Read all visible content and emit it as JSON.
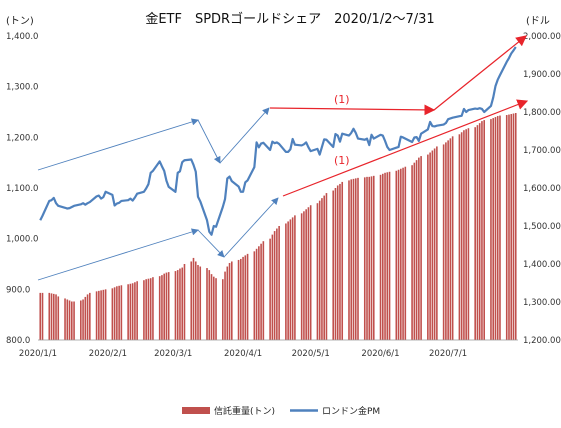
{
  "chart_data": {
    "type": "bar+line",
    "title": "金ETF　SPDRゴールドシェア　2020/1/2〜7/31",
    "left_axis": {
      "unit_label": "(トン)",
      "range": [
        800,
        1400
      ],
      "ticks": [
        "800.0",
        "900.0",
        "1,000.0",
        "1,100.0",
        "1,200.0",
        "1,300.0",
        "1,400.0"
      ],
      "tick_values": [
        800,
        900,
        1000,
        1100,
        1200,
        1300,
        1400
      ]
    },
    "right_axis": {
      "unit_label": "(ドル",
      "range": [
        1200,
        2000
      ],
      "ticks": [
        "1,200.00",
        "1,300.00",
        "1,400.00",
        "1,500.00",
        "1,600.00",
        "1,700.00",
        "1,800.00",
        "1,900.00",
        "2,000.00"
      ],
      "tick_values": [
        1200,
        1300,
        1400,
        1500,
        1600,
        1700,
        1800,
        1900,
        2000
      ]
    },
    "x_axis": {
      "ticks": [
        "2020/1/1",
        "2020/2/1",
        "2020/3/1",
        "2020/4/1",
        "2020/5/1",
        "2020/6/1",
        "2020/7/1"
      ],
      "tick_days": [
        0,
        31,
        60,
        91,
        121,
        152,
        182
      ],
      "domain_days": [
        0,
        213
      ]
    },
    "series": [
      {
        "name": "信託重量(トン)",
        "type": "bar",
        "axis": "left",
        "color": "#c0504d",
        "values": [
          [
            1,
            893
          ],
          [
            2,
            893
          ],
          [
            5,
            893
          ],
          [
            6,
            892
          ],
          [
            7,
            891
          ],
          [
            8,
            890
          ],
          [
            9,
            886
          ],
          [
            12,
            882
          ],
          [
            13,
            880
          ],
          [
            14,
            878
          ],
          [
            15,
            876
          ],
          [
            16,
            876
          ],
          [
            19,
            878
          ],
          [
            20,
            880
          ],
          [
            21,
            885
          ],
          [
            22,
            890
          ],
          [
            23,
            893
          ],
          [
            26,
            896
          ],
          [
            27,
            897
          ],
          [
            28,
            898
          ],
          [
            29,
            899
          ],
          [
            30,
            900
          ],
          [
            33,
            902
          ],
          [
            34,
            904
          ],
          [
            35,
            906
          ],
          [
            36,
            907
          ],
          [
            37,
            908
          ],
          [
            40,
            910
          ],
          [
            41,
            911
          ],
          [
            42,
            912
          ],
          [
            43,
            914
          ],
          [
            44,
            916
          ],
          [
            47,
            918
          ],
          [
            48,
            920
          ],
          [
            49,
            921
          ],
          [
            50,
            922
          ],
          [
            51,
            924
          ],
          [
            54,
            926
          ],
          [
            55,
            928
          ],
          [
            56,
            931
          ],
          [
            57,
            933
          ],
          [
            58,
            934
          ],
          [
            61,
            936
          ],
          [
            62,
            938
          ],
          [
            63,
            941
          ],
          [
            64,
            943
          ],
          [
            65,
            950
          ],
          [
            68,
            955
          ],
          [
            69,
            962
          ],
          [
            70,
            955
          ],
          [
            71,
            948
          ],
          [
            72,
            945
          ],
          [
            75,
            942
          ],
          [
            76,
            938
          ],
          [
            77,
            930
          ],
          [
            78,
            925
          ],
          [
            79,
            922
          ],
          [
            82,
            920
          ],
          [
            83,
            935
          ],
          [
            84,
            945
          ],
          [
            85,
            952
          ],
          [
            86,
            955
          ],
          [
            89,
            958
          ],
          [
            90,
            960
          ],
          [
            91,
            964
          ],
          [
            92,
            967
          ],
          [
            93,
            970
          ],
          [
            96,
            975
          ],
          [
            97,
            980
          ],
          [
            98,
            985
          ],
          [
            99,
            990
          ],
          [
            100,
            995
          ],
          [
            103,
            1000
          ],
          [
            104,
            1008
          ],
          [
            105,
            1015
          ],
          [
            106,
            1020
          ],
          [
            107,
            1025
          ],
          [
            110,
            1030
          ],
          [
            111,
            1034
          ],
          [
            112,
            1038
          ],
          [
            113,
            1042
          ],
          [
            114,
            1046
          ],
          [
            117,
            1050
          ],
          [
            118,
            1054
          ],
          [
            119,
            1058
          ],
          [
            120,
            1062
          ],
          [
            121,
            1066
          ],
          [
            124,
            1070
          ],
          [
            125,
            1075
          ],
          [
            126,
            1080
          ],
          [
            127,
            1085
          ],
          [
            128,
            1090
          ],
          [
            131,
            1095
          ],
          [
            132,
            1100
          ],
          [
            133,
            1105
          ],
          [
            134,
            1108
          ],
          [
            135,
            1112
          ],
          [
            138,
            1115
          ],
          [
            139,
            1117
          ],
          [
            140,
            1118
          ],
          [
            141,
            1119
          ],
          [
            142,
            1120
          ],
          [
            145,
            1121
          ],
          [
            146,
            1122
          ],
          [
            147,
            1122
          ],
          [
            148,
            1123
          ],
          [
            149,
            1124
          ],
          [
            152,
            1126
          ],
          [
            153,
            1128
          ],
          [
            154,
            1130
          ],
          [
            155,
            1131
          ],
          [
            156,
            1132
          ],
          [
            159,
            1134
          ],
          [
            160,
            1136
          ],
          [
            161,
            1138
          ],
          [
            162,
            1140
          ],
          [
            163,
            1142
          ],
          [
            166,
            1145
          ],
          [
            167,
            1150
          ],
          [
            168,
            1155
          ],
          [
            169,
            1160
          ],
          [
            170,
            1163
          ],
          [
            173,
            1166
          ],
          [
            174,
            1170
          ],
          [
            175,
            1174
          ],
          [
            176,
            1178
          ],
          [
            177,
            1182
          ],
          [
            180,
            1186
          ],
          [
            181,
            1190
          ],
          [
            182,
            1194
          ],
          [
            183,
            1198
          ],
          [
            184,
            1202
          ],
          [
            187,
            1206
          ],
          [
            188,
            1210
          ],
          [
            189,
            1214
          ],
          [
            190,
            1216
          ],
          [
            191,
            1218
          ],
          [
            194,
            1220
          ],
          [
            195,
            1224
          ],
          [
            196,
            1228
          ],
          [
            197,
            1232
          ],
          [
            198,
            1234
          ],
          [
            201,
            1236
          ],
          [
            202,
            1238
          ],
          [
            203,
            1240
          ],
          [
            204,
            1242
          ],
          [
            205,
            1243
          ],
          [
            208,
            1244
          ],
          [
            209,
            1245
          ],
          [
            210,
            1246
          ],
          [
            211,
            1247
          ],
          [
            212,
            1248
          ]
        ]
      },
      {
        "name": "ロンドン金PM",
        "type": "line",
        "axis": "right",
        "color": "#4f81bd",
        "values": [
          [
            1,
            1515
          ],
          [
            2,
            1527
          ],
          [
            5,
            1566
          ],
          [
            6,
            1568
          ],
          [
            7,
            1574
          ],
          [
            8,
            1560
          ],
          [
            9,
            1553
          ],
          [
            12,
            1548
          ],
          [
            13,
            1546
          ],
          [
            14,
            1547
          ],
          [
            15,
            1550
          ],
          [
            16,
            1553
          ],
          [
            19,
            1557
          ],
          [
            20,
            1560
          ],
          [
            21,
            1556
          ],
          [
            22,
            1560
          ],
          [
            23,
            1563
          ],
          [
            26,
            1578
          ],
          [
            27,
            1580
          ],
          [
            28,
            1572
          ],
          [
            29,
            1576
          ],
          [
            30,
            1590
          ],
          [
            33,
            1582
          ],
          [
            34,
            1554
          ],
          [
            35,
            1559
          ],
          [
            36,
            1561
          ],
          [
            37,
            1566
          ],
          [
            40,
            1568
          ],
          [
            41,
            1572
          ],
          [
            42,
            1567
          ],
          [
            43,
            1575
          ],
          [
            44,
            1585
          ],
          [
            47,
            1590
          ],
          [
            48,
            1599
          ],
          [
            49,
            1610
          ],
          [
            50,
            1640
          ],
          [
            51,
            1645
          ],
          [
            54,
            1670
          ],
          [
            55,
            1657
          ],
          [
            56,
            1645
          ],
          [
            57,
            1619
          ],
          [
            58,
            1603
          ],
          [
            61,
            1590
          ],
          [
            62,
            1640
          ],
          [
            63,
            1644
          ],
          [
            64,
            1668
          ],
          [
            65,
            1673
          ],
          [
            68,
            1675
          ],
          [
            69,
            1661
          ],
          [
            70,
            1643
          ],
          [
            71,
            1577
          ],
          [
            72,
            1565
          ],
          [
            75,
            1515
          ],
          [
            76,
            1485
          ],
          [
            77,
            1477
          ],
          [
            78,
            1500
          ],
          [
            79,
            1498
          ],
          [
            82,
            1550
          ],
          [
            83,
            1571
          ],
          [
            84,
            1625
          ],
          [
            85,
            1630
          ],
          [
            86,
            1618
          ],
          [
            89,
            1604
          ],
          [
            90,
            1590
          ],
          [
            91,
            1590
          ],
          [
            92,
            1615
          ],
          [
            93,
            1620
          ],
          [
            96,
            1655
          ],
          [
            97,
            1720
          ],
          [
            98,
            1707
          ],
          [
            99,
            1717
          ],
          [
            100,
            1719
          ],
          [
            103,
            1700
          ],
          [
            104,
            1722
          ],
          [
            105,
            1718
          ],
          [
            106,
            1720
          ],
          [
            107,
            1716
          ],
          [
            110,
            1695
          ],
          [
            111,
            1695
          ],
          [
            112,
            1702
          ],
          [
            113,
            1729
          ],
          [
            114,
            1714
          ],
          [
            117,
            1712
          ],
          [
            118,
            1715
          ],
          [
            119,
            1720
          ],
          [
            120,
            1707
          ],
          [
            121,
            1697
          ],
          [
            124,
            1703
          ],
          [
            125,
            1688
          ],
          [
            126,
            1708
          ],
          [
            127,
            1728
          ],
          [
            128,
            1727
          ],
          [
            131,
            1708
          ],
          [
            132,
            1742
          ],
          [
            133,
            1738
          ],
          [
            134,
            1722
          ],
          [
            135,
            1743
          ],
          [
            138,
            1738
          ],
          [
            139,
            1745
          ],
          [
            140,
            1756
          ],
          [
            141,
            1745
          ],
          [
            142,
            1730
          ],
          [
            145,
            1727
          ],
          [
            146,
            1730
          ],
          [
            147,
            1713
          ],
          [
            148,
            1740
          ],
          [
            149,
            1730
          ],
          [
            152,
            1740
          ],
          [
            153,
            1738
          ],
          [
            154,
            1724
          ],
          [
            155,
            1708
          ],
          [
            156,
            1700
          ],
          [
            159,
            1706
          ],
          [
            160,
            1708
          ],
          [
            161,
            1735
          ],
          [
            162,
            1733
          ],
          [
            163,
            1730
          ],
          [
            166,
            1721
          ],
          [
            167,
            1733
          ],
          [
            168,
            1734
          ],
          [
            169,
            1724
          ],
          [
            170,
            1743
          ],
          [
            173,
            1754
          ],
          [
            174,
            1774
          ],
          [
            175,
            1763
          ],
          [
            176,
            1762
          ],
          [
            177,
            1764
          ],
          [
            180,
            1767
          ],
          [
            181,
            1771
          ],
          [
            182,
            1781
          ],
          [
            183,
            1783
          ],
          [
            184,
            1785
          ],
          [
            187,
            1789
          ],
          [
            188,
            1790
          ],
          [
            189,
            1808
          ],
          [
            190,
            1800
          ],
          [
            191,
            1805
          ],
          [
            194,
            1809
          ],
          [
            195,
            1808
          ],
          [
            196,
            1810
          ],
          [
            197,
            1808
          ],
          [
            198,
            1800
          ],
          [
            201,
            1816
          ],
          [
            202,
            1838
          ],
          [
            203,
            1868
          ],
          [
            204,
            1885
          ],
          [
            205,
            1897
          ],
          [
            208,
            1932
          ],
          [
            209,
            1942
          ],
          [
            210,
            1954
          ],
          [
            211,
            1962
          ],
          [
            212,
            1971
          ]
        ]
      }
    ],
    "annotations": [
      {
        "label": "(1)",
        "color": "#e8242b"
      },
      {
        "label": "(1)",
        "color": "#e8242b"
      }
    ],
    "legend": {
      "placement": "bottom-center"
    },
    "grid": false
  }
}
